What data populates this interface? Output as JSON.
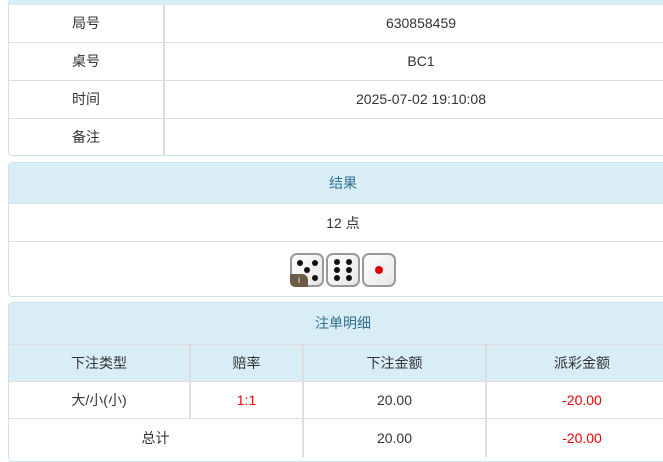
{
  "info": {
    "rows": [
      {
        "label": "局号",
        "value": "630858459"
      },
      {
        "label": "桌号",
        "value": "BC1"
      },
      {
        "label": "时间",
        "value": "2025-07-02 19:10:08"
      },
      {
        "label": "备注",
        "value": ""
      }
    ]
  },
  "result": {
    "title": "结果",
    "points": "12 点",
    "dice": [
      5,
      6,
      1
    ]
  },
  "bets": {
    "title": "注单明细",
    "headers": [
      "下注类型",
      "赔率",
      "下注金额",
      "派彩金额"
    ],
    "rows": [
      {
        "type": "大/小(小)",
        "odds": "1:1",
        "amount": "20.00",
        "payout": "-20.00"
      }
    ],
    "total": {
      "label": "总计",
      "amount": "20.00",
      "payout": "-20.00"
    }
  },
  "colors": {
    "header_bg": "#d9edf7",
    "header_text": "#31708f",
    "negative": "#e00000"
  }
}
